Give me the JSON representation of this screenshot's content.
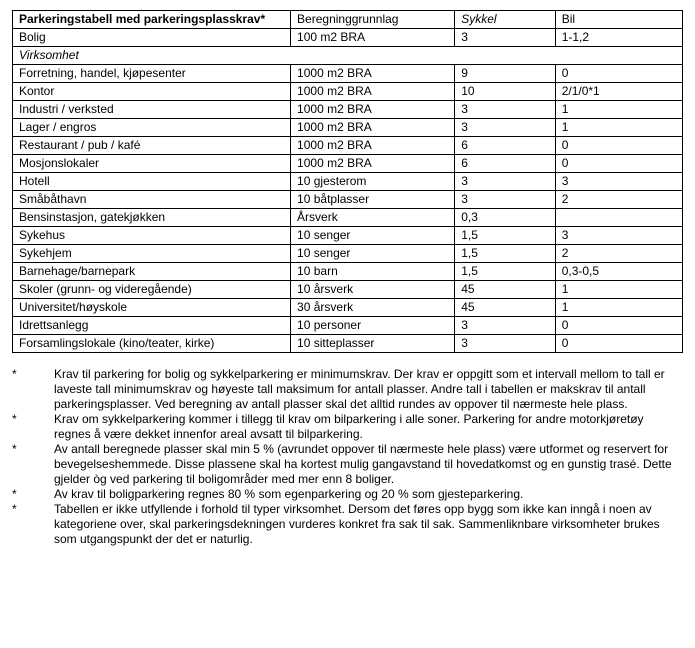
{
  "table": {
    "header": {
      "title": "Parkeringstabell med parkeringsplasskrav*",
      "col_basis": "Beregninggrunnlag",
      "col_bike": "Sykkel",
      "col_car": "Bil"
    },
    "colwidths_pct": [
      41.5,
      24.5,
      15,
      19
    ],
    "fontsize_pt": 9,
    "border_color": "#000000",
    "background": "#ffffff",
    "rows": [
      {
        "type": "data",
        "name": "Bolig",
        "basis": "100 m2 BRA",
        "bike": "3",
        "car": "1-1,2"
      },
      {
        "type": "section",
        "name": "Virksomhet"
      },
      {
        "type": "data",
        "name": "Forretning, handel, kjøpesenter",
        "basis": "1000 m2 BRA",
        "bike": "9",
        "car": "0"
      },
      {
        "type": "data",
        "name": "Kontor",
        "basis": "1000 m2 BRA",
        "bike": "10",
        "car": "2/1/0*1"
      },
      {
        "type": "data",
        "name": "Industri / verksted",
        "basis": "1000 m2 BRA",
        "bike": "3",
        "car": "1"
      },
      {
        "type": "data",
        "name": "Lager / engros",
        "basis": "1000 m2 BRA",
        "bike": "3",
        "car": "1"
      },
      {
        "type": "data",
        "name": "Restaurant / pub / kafé",
        "basis": "1000 m2 BRA",
        "bike": "6",
        "car": "0"
      },
      {
        "type": "data",
        "name": "Mosjonslokaler",
        "basis": "1000 m2 BRA",
        "bike": "6",
        "car": "0"
      },
      {
        "type": "data",
        "name": "Hotell",
        "basis": "10 gjesterom",
        "bike": "3",
        "car": "3"
      },
      {
        "type": "data",
        "name": "Småbåthavn",
        "basis": "10 båtplasser",
        "bike": "3",
        "car": "2"
      },
      {
        "type": "data",
        "name": "Bensinstasjon, gatekjøkken",
        "basis": "Årsverk",
        "bike": "0,3",
        "car": ""
      },
      {
        "type": "data",
        "name": "Sykehus",
        "basis": "10 senger",
        "bike": "1,5",
        "car": "3"
      },
      {
        "type": "data",
        "name": "Sykehjem",
        "basis": "10 senger",
        "bike": "1,5",
        "car": "2"
      },
      {
        "type": "data",
        "name": "Barnehage/barnepark",
        "basis": "10 barn",
        "bike": "1,5",
        "car": "0,3-0,5"
      },
      {
        "type": "data",
        "name": "Skoler (grunn- og videregående)",
        "basis": "10 årsverk",
        "bike": "45",
        "car": "1"
      },
      {
        "type": "data",
        "name": "Universitet/høyskole",
        "basis": "30 årsverk",
        "bike": "45",
        "car": "1"
      },
      {
        "type": "data",
        "name": "Idrettsanlegg",
        "basis": "10 personer",
        "bike": "3",
        "car": "0"
      },
      {
        "type": "data",
        "name": "Forsamlingslokale (kino/teater, kirke)",
        "basis": "10 sitteplasser",
        "bike": "3",
        "car": "0"
      }
    ]
  },
  "notes": {
    "marker": "*",
    "items": [
      "Krav til parkering for bolig og sykkelparkering er minimumskrav. Der krav er oppgitt som et intervall mellom to tall er laveste tall minimumskrav og høyeste tall maksimum for antall plasser. Andre tall i tabellen er makskrav til antall parkeringsplasser. Ved beregning av antall plasser skal det alltid rundes av oppover til nærmeste hele plass.",
      "Krav om sykkelparkering kommer i tillegg til krav om bilparkering i alle soner. Parkering for andre motorkjøretøy regnes å være dekket innenfor areal avsatt til bilparkering.",
      "Av antall beregnede plasser skal min 5 % (avrundet oppover til nærmeste hele plass) være utformet og reservert for bevegelseshemmede. Disse plassene skal ha kortest mulig gangavstand til hovedatkomst og en gunstig trasé. Dette gjelder òg ved parkering til boligområder med mer enn 8 boliger.",
      "Av krav til boligparkering regnes 80 % som egenparkering og 20 % som gjesteparkering.",
      "Tabellen er ikke utfyllende i forhold til typer virksomhet. Dersom det føres opp bygg som ikke kan inngå i noen av kategoriene over, skal parkeringsdekningen vurderes konkret fra sak til sak. Sammenliknbare virksomheter brukes som utgangspunkt der det er naturlig."
    ]
  }
}
